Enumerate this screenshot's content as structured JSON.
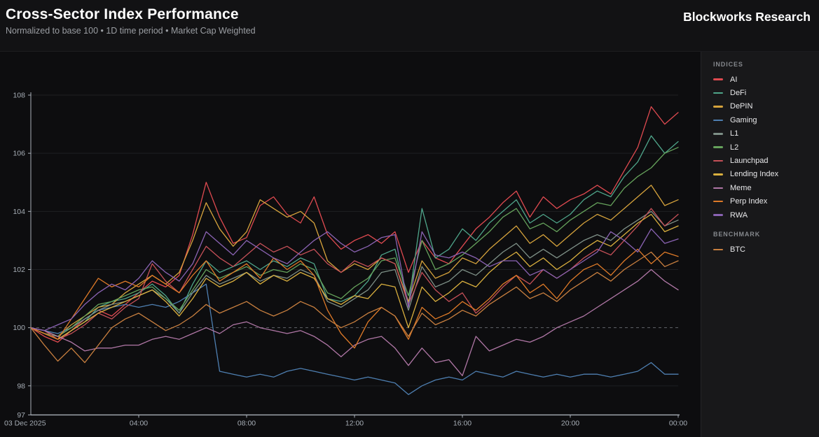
{
  "header": {
    "title": "Cross-Sector Index Performance",
    "subtitle": "Normalized to base 100 • 1D time period • Market Cap Weighted",
    "brand": "Blockworks Research"
  },
  "legend": {
    "indices_label": "INDICES",
    "benchmark_label": "BENCHMARK"
  },
  "chart_data": {
    "type": "line",
    "title": "Cross-Sector Index Performance",
    "xlabel": "",
    "ylabel": "",
    "grid": "horizontal",
    "legend_position": "right",
    "baseline": 100,
    "baseline_style": "dashed",
    "xlim": [
      0,
      24
    ],
    "ylim": [
      97,
      108
    ],
    "x_start": 0,
    "x_step": 0.5,
    "x_start_label": "03 Dec 2025",
    "x_tick_hours": [
      4,
      8,
      12,
      16,
      20,
      24
    ],
    "x_tick_labels": [
      "04:00",
      "08:00",
      "12:00",
      "16:00",
      "20:00",
      "00:00"
    ],
    "y_ticks": [
      97,
      98,
      100,
      102,
      104,
      106,
      108
    ],
    "colors": {
      "axis": "#a9b0b8",
      "tick_text": "#a6adb5",
      "grid": "#1e2023",
      "baseline": "#60646a"
    },
    "series": [
      {
        "name": "AI",
        "group": "indices",
        "color": "#df4a50",
        "values": [
          100,
          99.7,
          99.5,
          99.9,
          100.3,
          100.6,
          100.4,
          100.8,
          101.2,
          101.6,
          101.4,
          101.8,
          103.2,
          105,
          103.8,
          102.9,
          103.1,
          104.2,
          104.5,
          103.9,
          103.6,
          104.5,
          103.2,
          102.7,
          103,
          103.2,
          102.9,
          103.3,
          101.9,
          103,
          102.4,
          102.2,
          102.8,
          103.4,
          103.8,
          104.3,
          104.7,
          103.8,
          104.5,
          104.1,
          104.4,
          104.6,
          104.9,
          104.6,
          105.4,
          106.2,
          107.6,
          107,
          107.4
        ]
      },
      {
        "name": "DeFi",
        "group": "indices",
        "color": "#4fa58a",
        "values": [
          100,
          99.8,
          99.6,
          99.9,
          100.2,
          100.7,
          100.9,
          101,
          101.2,
          101.5,
          101.1,
          100.5,
          101.5,
          102.3,
          101.9,
          102.1,
          102.3,
          102,
          102.3,
          102.1,
          102.4,
          102.2,
          101,
          100.9,
          101.1,
          101.6,
          102.5,
          102.7,
          100.8,
          104.1,
          102.4,
          102.7,
          103.4,
          103,
          103.6,
          104,
          104.4,
          103.6,
          103.9,
          103.6,
          103.9,
          104.4,
          104.7,
          104.5,
          105.2,
          105.7,
          106.6,
          106,
          106.4
        ]
      },
      {
        "name": "DePIN",
        "group": "indices",
        "color": "#d6a33c",
        "values": [
          100,
          99.9,
          99.7,
          100.1,
          100.4,
          100.7,
          100.8,
          101.2,
          101.5,
          101.8,
          101.5,
          101.9,
          103,
          104.3,
          103.4,
          102.8,
          103.3,
          104.4,
          104.1,
          103.8,
          104,
          103.6,
          102.3,
          101.9,
          102.2,
          102,
          102.4,
          102.2,
          100.9,
          102.3,
          101.7,
          101.9,
          102.4,
          102.2,
          102.7,
          103.1,
          103.5,
          102.9,
          103.2,
          102.8,
          103.2,
          103.6,
          103.9,
          103.7,
          104.1,
          104.5,
          104.9,
          104.2,
          104.4
        ]
      },
      {
        "name": "Gaming",
        "group": "indices",
        "color": "#4e7fb1",
        "values": [
          100,
          99.9,
          99.8,
          100,
          100.3,
          100.6,
          100.7,
          100.8,
          100.7,
          100.8,
          100.7,
          100.9,
          101.2,
          101.5,
          98.5,
          98.4,
          98.3,
          98.4,
          98.3,
          98.5,
          98.6,
          98.5,
          98.4,
          98.3,
          98.2,
          98.3,
          98.2,
          98.1,
          97.7,
          98,
          98.2,
          98.3,
          98.2,
          98.5,
          98.4,
          98.3,
          98.5,
          98.4,
          98.3,
          98.4,
          98.3,
          98.4,
          98.4,
          98.3,
          98.4,
          98.5,
          98.8,
          98.4,
          98.4
        ]
      },
      {
        "name": "L1",
        "group": "indices",
        "color": "#7e9087",
        "values": [
          100,
          99.8,
          99.7,
          100,
          100.3,
          100.6,
          100.8,
          100.9,
          101.1,
          101.3,
          101,
          100.5,
          101.2,
          101.8,
          101.5,
          101.7,
          101.9,
          101.6,
          101.8,
          101.7,
          102,
          101.8,
          100.9,
          100.7,
          101,
          101.3,
          101.9,
          102,
          100.6,
          102.1,
          101.4,
          101.6,
          102,
          101.8,
          102.2,
          102.6,
          102.9,
          102.4,
          102.7,
          102.4,
          102.7,
          103,
          103.2,
          103,
          103.4,
          103.7,
          104,
          103.5,
          103.7
        ]
      },
      {
        "name": "L2",
        "group": "indices",
        "color": "#66a35c",
        "values": [
          100,
          99.8,
          99.7,
          100,
          100.4,
          100.8,
          100.9,
          101.1,
          101.3,
          101.4,
          101,
          100.6,
          101.3,
          102,
          101.7,
          101.9,
          102.1,
          101.8,
          102,
          101.9,
          102.2,
          102,
          101.2,
          101,
          101.4,
          101.7,
          102.3,
          102.4,
          101.1,
          103,
          102,
          102.2,
          102.5,
          102.9,
          103.3,
          103.8,
          104.1,
          103.4,
          103.6,
          103.3,
          103.7,
          104,
          104.3,
          104.2,
          104.8,
          105.2,
          105.5,
          106,
          106.2
        ]
      },
      {
        "name": "Launchpad",
        "group": "indices",
        "color": "#c65058",
        "values": [
          100,
          99.9,
          99.6,
          99.8,
          100.1,
          100.5,
          100.3,
          100.7,
          101,
          102.2,
          101.6,
          101.2,
          102,
          102.8,
          102.4,
          102.1,
          102.5,
          102.9,
          102.6,
          102.8,
          102.5,
          102.7,
          102.2,
          101.9,
          102.3,
          102.1,
          102.4,
          102.2,
          100.8,
          101.9,
          101.3,
          100.9,
          101.2,
          100.5,
          100.9,
          101.4,
          101.8,
          101.5,
          102,
          101.7,
          102,
          102.4,
          102.7,
          102.5,
          103,
          103.5,
          104.1,
          103.5,
          103.9
        ]
      },
      {
        "name": "Lending Index",
        "group": "indices",
        "color": "#dab03e",
        "values": [
          100,
          99.8,
          99.6,
          99.9,
          100.2,
          100.5,
          100.7,
          100.9,
          101.1,
          101.3,
          100.9,
          100.4,
          101,
          101.7,
          101.4,
          101.6,
          101.9,
          101.5,
          101.8,
          101.6,
          101.9,
          101.7,
          101,
          100.8,
          101.1,
          101,
          101.5,
          101.4,
          100,
          101.4,
          100.9,
          101.2,
          101.6,
          101.4,
          101.9,
          102.3,
          102.6,
          102.1,
          102.4,
          102,
          102.3,
          102.7,
          103,
          102.8,
          103.2,
          103.6,
          103.9,
          103.3,
          103.5
        ]
      },
      {
        "name": "Meme",
        "group": "indices",
        "color": "#b077a6",
        "values": [
          100,
          99.9,
          99.7,
          99.5,
          99.2,
          99.3,
          99.3,
          99.4,
          99.4,
          99.6,
          99.7,
          99.6,
          99.8,
          100,
          99.8,
          100.1,
          100.2,
          100,
          99.9,
          99.8,
          99.9,
          99.7,
          99.4,
          99,
          99.4,
          99.6,
          99.7,
          99.3,
          98.7,
          99.3,
          98.8,
          98.9,
          98.35,
          99.7,
          99.2,
          99.4,
          99.6,
          99.5,
          99.7,
          100,
          100.2,
          100.4,
          100.7,
          101,
          101.3,
          101.6,
          102,
          101.6,
          101.3
        ]
      },
      {
        "name": "Perp Index",
        "group": "indices",
        "color": "#de7a28",
        "values": [
          100,
          99.8,
          99.6,
          100.3,
          101,
          101.7,
          101.4,
          101.6,
          101.4,
          101.8,
          101.5,
          101.2,
          101.8,
          102.3,
          101.6,
          101.9,
          102.2,
          101.7,
          102.4,
          102,
          102.3,
          101.8,
          100.6,
          99.8,
          99.3,
          100.2,
          100.7,
          100.4,
          99.6,
          100.7,
          100.3,
          100.5,
          100.9,
          100.6,
          101,
          101.5,
          101.8,
          101.2,
          101.5,
          101,
          101.6,
          102,
          102.2,
          101.8,
          102.3,
          102.7,
          102.2,
          102.6,
          102.45
        ]
      },
      {
        "name": "RWA",
        "group": "indices",
        "color": "#8a63b3",
        "values": [
          100,
          99.9,
          100.1,
          100.3,
          100.8,
          101.2,
          101.5,
          101.3,
          101.7,
          102.3,
          101.9,
          101.6,
          102.2,
          103.3,
          102.9,
          102.5,
          103,
          102.7,
          102.4,
          102.2,
          102.6,
          103,
          103.3,
          102.9,
          102.6,
          102.8,
          103.1,
          103.2,
          100.7,
          103.3,
          102.5,
          102.4,
          102.6,
          102.4,
          102.1,
          102.3,
          102.3,
          101.8,
          102,
          101.7,
          102,
          102.3,
          102.6,
          103.3,
          103,
          102.6,
          103.4,
          102.9,
          103.05
        ]
      },
      {
        "name": "BTC",
        "group": "benchmark",
        "color": "#c87f3f",
        "values": [
          100,
          99.4,
          98.85,
          99.3,
          98.8,
          99.4,
          100,
          100.3,
          100.5,
          100.2,
          99.9,
          100.1,
          100.4,
          100.8,
          100.5,
          100.7,
          100.9,
          100.6,
          100.4,
          100.6,
          100.9,
          100.7,
          100.3,
          100,
          100.2,
          100.5,
          100.7,
          100.4,
          99.7,
          100.5,
          100.1,
          100.3,
          100.6,
          100.4,
          100.8,
          101.1,
          101.4,
          101,
          101.2,
          100.9,
          101.3,
          101.6,
          101.9,
          101.6,
          102,
          102.3,
          102.6,
          102.1,
          102.3
        ]
      }
    ]
  }
}
